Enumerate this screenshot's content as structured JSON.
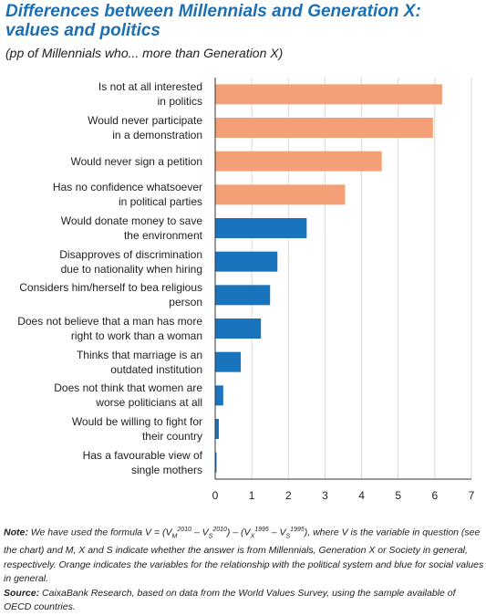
{
  "title_line1": "Differences between Millennials and Generation X:",
  "title_line2": "values and politics",
  "subtitle": "(pp of Millennials who... more than Generation X)",
  "note": {
    "label": "Note:",
    "text_a": " We have used the formula V = (V",
    "text_b": ", where V is the variable in question (see the chart) and M, X and S indicate whether the answer is from Millennials, Generation X or Society in general, respectively. Orange indicates the variables for the relationship with the political system and blue for social values in general.",
    "formula": {
      "year1": "2010",
      "year2": "1995",
      "m": "M",
      "s": "S",
      "x": "X",
      "minus": " – V",
      "close_open": ") – (V",
      "close": ")"
    }
  },
  "source": {
    "label": "Source:",
    "text": " CaixaBank Research, based on data from the World Values Survey, using the sample available of OECD countries."
  },
  "colors": {
    "political": "#f4a077",
    "social": "#1a73bd",
    "title": "#1b6fb5",
    "grid": "#d9d9d9"
  },
  "chart_data": {
    "type": "bar",
    "orientation": "horizontal",
    "xlim": [
      0,
      7
    ],
    "xticks": [
      0,
      1,
      2,
      3,
      4,
      5,
      6,
      7
    ],
    "grid": true,
    "categories": [
      [
        "Is not at all interested",
        "in politics"
      ],
      [
        "Would never participate",
        "in a demonstration"
      ],
      [
        "Would never sign a petition"
      ],
      [
        "Has no confidence whatsoever",
        "in political parties"
      ],
      [
        "Would donate money to save",
        "the environment"
      ],
      [
        "Disapproves of discrimination",
        "due to nationality when hiring"
      ],
      [
        "Considers him/herself to bea religious",
        "person"
      ],
      [
        "Does not believe that a man has more",
        "right to work than a woman"
      ],
      [
        "Thinks that marriage is an",
        "outdated institution"
      ],
      [
        "Does not think that women are",
        "worse politicians at all"
      ],
      [
        "Would be willing to fight for",
        "their country"
      ],
      [
        "Has a favourable view of",
        "single mothers"
      ]
    ],
    "values": [
      6.2,
      5.95,
      4.55,
      3.55,
      2.5,
      1.7,
      1.5,
      1.25,
      0.7,
      0.22,
      0.1,
      0.03
    ],
    "groups": [
      "political",
      "political",
      "political",
      "political",
      "social",
      "social",
      "social",
      "social",
      "social",
      "social",
      "social",
      "social"
    ]
  }
}
